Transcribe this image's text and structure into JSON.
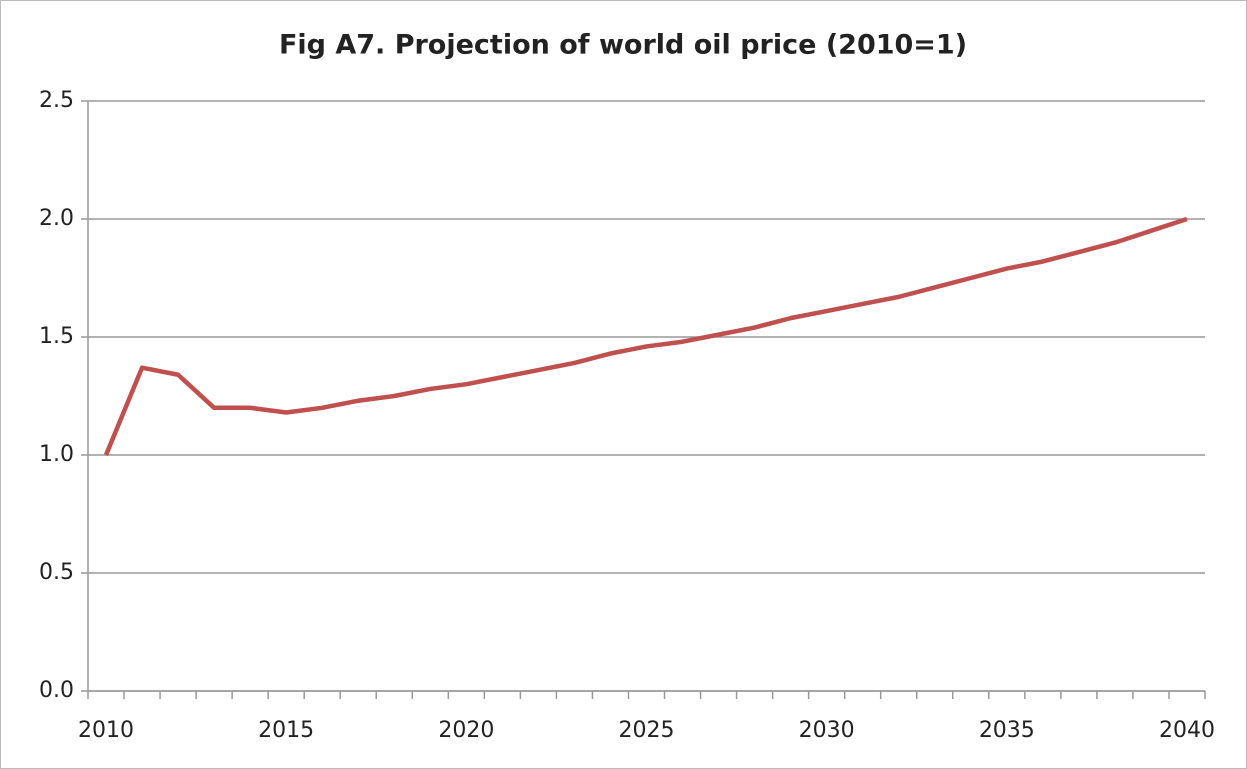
{
  "chart_data": {
    "type": "line",
    "title": "Fig A7. Projection of world oil price (2010=1)",
    "categories": [
      "2010",
      null,
      null,
      null,
      null,
      "2015",
      null,
      null,
      null,
      null,
      "2020",
      null,
      null,
      null,
      null,
      "2025",
      null,
      null,
      null,
      null,
      "2030",
      null,
      null,
      null,
      null,
      "2035",
      null,
      null,
      null,
      null,
      "2040"
    ],
    "values": [
      1.0,
      1.37,
      1.34,
      1.2,
      1.2,
      1.18,
      1.2,
      1.23,
      1.25,
      1.28,
      1.3,
      1.33,
      1.36,
      1.39,
      1.43,
      1.46,
      1.48,
      1.51,
      1.54,
      1.58,
      1.61,
      1.64,
      1.67,
      1.71,
      1.75,
      1.79,
      1.82,
      1.86,
      1.9,
      1.95,
      2.0
    ],
    "color": "#c0504d",
    "ylim": [
      0,
      2.5
    ],
    "yticks": [
      {
        "value": 0,
        "label": "0.0"
      },
      {
        "value": 0.5,
        "label": "0.5"
      },
      {
        "value": 1,
        "label": "1.0"
      },
      {
        "value": 1.5,
        "label": "1.5"
      },
      {
        "value": 2,
        "label": "2.0"
      },
      {
        "value": 2.5,
        "label": "2.5"
      }
    ],
    "grid": true
  }
}
